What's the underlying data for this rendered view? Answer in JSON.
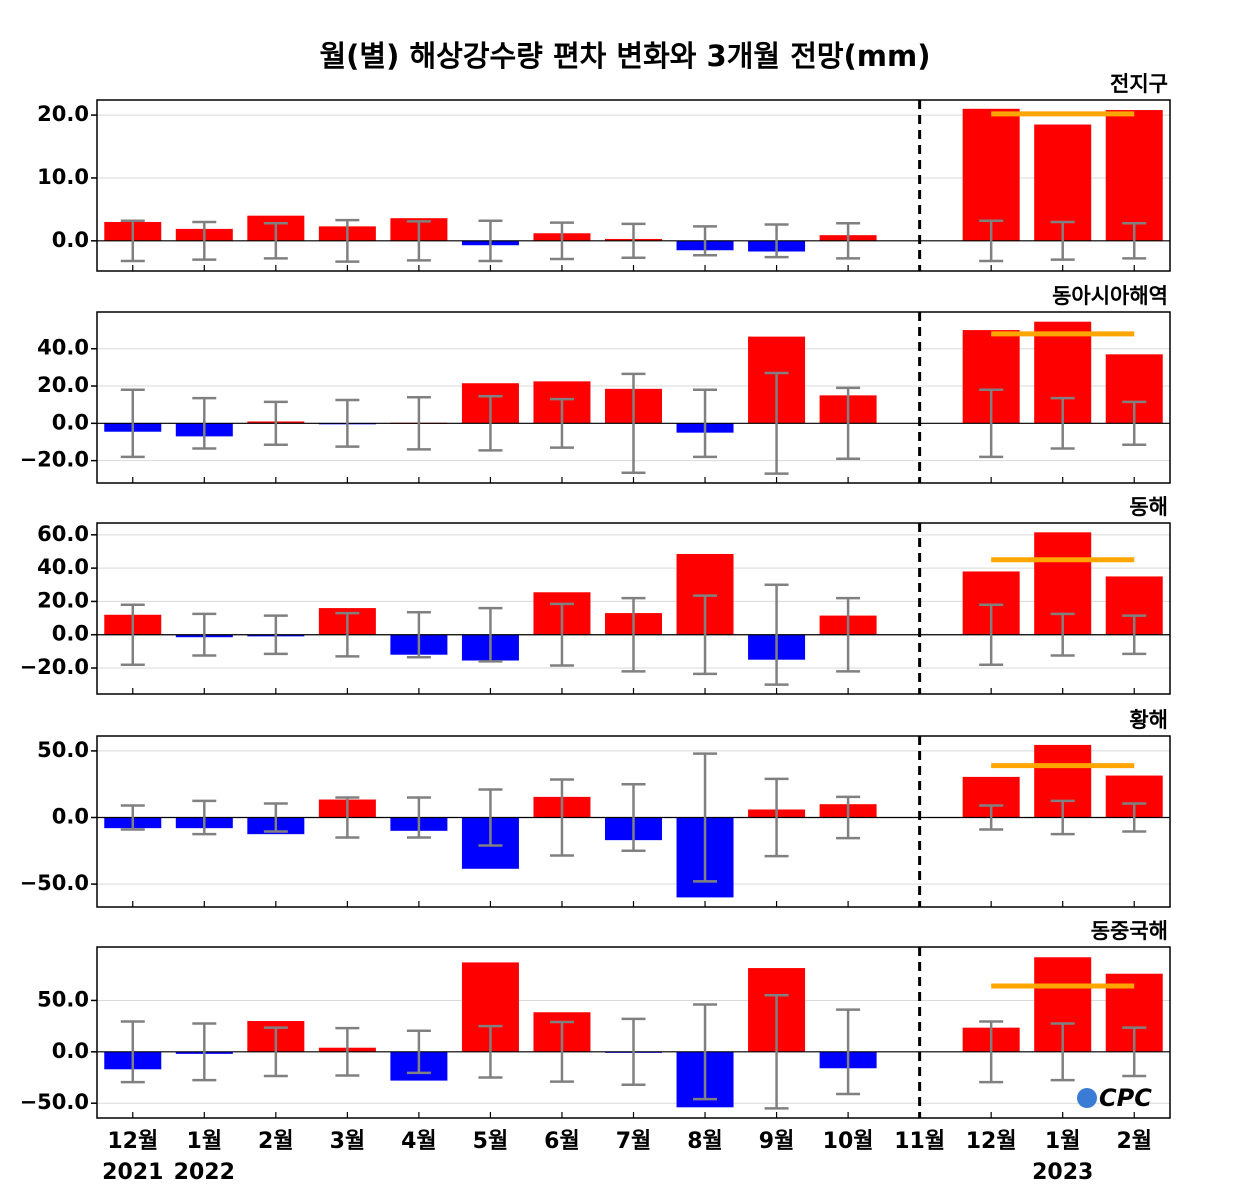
{
  "title": "월(별) 해상강수량 편차 변화와 3개월 전망(mm)",
  "categories": [
    "12월",
    "1월",
    "2월",
    "3월",
    "4월",
    "5월",
    "6월",
    "7월",
    "8월",
    "9월",
    "10월",
    "11월",
    "12월",
    "1월",
    "2월"
  ],
  "years": [
    "2021",
    "2022",
    null,
    null,
    null,
    null,
    null,
    null,
    null,
    null,
    null,
    null,
    null,
    "2023",
    null
  ],
  "logo": "CPC",
  "chart_data": [
    {
      "type": "bar",
      "title": "전지구",
      "pos_color": "#ff0000",
      "neg_color": "#0000ff",
      "error_color": "#808080",
      "forecast_color": "#ffa500",
      "grid": true,
      "values": [
        3.0,
        1.9,
        4.0,
        2.3,
        3.6,
        -0.7,
        1.2,
        0.3,
        -1.5,
        -1.7,
        0.9,
        null,
        21.0,
        18.5,
        20.8
      ],
      "errors": [
        3.2,
        3.0,
        2.8,
        3.3,
        3.1,
        3.2,
        2.9,
        2.7,
        2.3,
        2.6,
        2.8,
        null,
        3.2,
        3.0,
        2.8
      ],
      "forecast": 20.2,
      "ylim": [
        -4.8,
        22.4
      ],
      "yticks": [
        {
          "value": 0,
          "label": "0.0"
        },
        {
          "value": 10,
          "label": "10.0"
        },
        {
          "value": 20,
          "label": "20.0"
        }
      ]
    },
    {
      "type": "bar",
      "title": "동아시아해역",
      "pos_color": "#ff0000",
      "neg_color": "#0000ff",
      "error_color": "#808080",
      "forecast_color": "#ffa500",
      "grid": true,
      "values": [
        -4.5,
        -7,
        1,
        -0.5,
        0.3,
        21.5,
        22.5,
        18.5,
        -5,
        46.5,
        15,
        null,
        50,
        54.5,
        37
      ],
      "errors": [
        18,
        13.5,
        11.5,
        12.5,
        14,
        14.5,
        13,
        26.5,
        18,
        27,
        19,
        null,
        18,
        13.5,
        11.5
      ],
      "forecast": 48,
      "ylim": [
        -32,
        59.7
      ],
      "yticks": [
        {
          "value": -20,
          "label": "−20.0"
        },
        {
          "value": 0,
          "label": "0.0"
        },
        {
          "value": 20,
          "label": "20.0"
        },
        {
          "value": 40,
          "label": "40.0"
        }
      ]
    },
    {
      "type": "bar",
      "title": "동해",
      "pos_color": "#ff0000",
      "neg_color": "#0000ff",
      "error_color": "#808080",
      "forecast_color": "#ffa500",
      "grid": true,
      "values": [
        12,
        -1.5,
        -1,
        16,
        -12,
        -15.5,
        25.5,
        13,
        48.5,
        -15,
        11.5,
        null,
        38,
        61.5,
        35
      ],
      "errors": [
        18,
        12.5,
        11.5,
        13,
        13.5,
        16,
        18.5,
        22,
        23.5,
        30,
        22,
        null,
        18,
        12.5,
        11.5
      ],
      "forecast": 45,
      "ylim": [
        -35.6,
        67.1
      ],
      "yticks": [
        {
          "value": -20,
          "label": "−20.0"
        },
        {
          "value": 0,
          "label": "0.0"
        },
        {
          "value": 20,
          "label": "20.0"
        },
        {
          "value": 40,
          "label": "40.0"
        },
        {
          "value": 60,
          "label": "60.0"
        }
      ]
    },
    {
      "type": "bar",
      "title": "황해",
      "pos_color": "#ff0000",
      "neg_color": "#0000ff",
      "error_color": "#808080",
      "forecast_color": "#ffa500",
      "grid": true,
      "values": [
        -8,
        -8,
        -12.5,
        13.5,
        -10,
        -38.5,
        15.5,
        -17,
        -60,
        6,
        10,
        null,
        30.5,
        54.5,
        31.5
      ],
      "errors": [
        9,
        12.5,
        10.5,
        15,
        15,
        21,
        28.5,
        25,
        48,
        29,
        15.5,
        null,
        9,
        12.5,
        10.5
      ],
      "forecast": 39,
      "ylim": [
        -67.2,
        61.2
      ],
      "yticks": [
        {
          "value": -50,
          "label": "−50.0"
        },
        {
          "value": 0,
          "label": "0.0"
        },
        {
          "value": 50,
          "label": "50.0"
        }
      ]
    },
    {
      "type": "bar",
      "title": "동중국해",
      "pos_color": "#ff0000",
      "neg_color": "#0000ff",
      "error_color": "#808080",
      "forecast_color": "#ffa500",
      "grid": true,
      "values": [
        -17,
        -2,
        30,
        4,
        -28,
        87,
        38.5,
        -1,
        -54,
        81.5,
        -16,
        null,
        23.5,
        92,
        76
      ],
      "errors": [
        29.5,
        27.5,
        23.5,
        23,
        20.5,
        25,
        29,
        32,
        46,
        55,
        41,
        null,
        29.5,
        27.5,
        23.5
      ],
      "forecast": 64,
      "ylim": [
        -64.4,
        102
      ],
      "yticks": [
        {
          "value": -50,
          "label": "−50.0"
        },
        {
          "value": 0,
          "label": "0.0"
        },
        {
          "value": 50,
          "label": "50.0"
        }
      ]
    }
  ]
}
